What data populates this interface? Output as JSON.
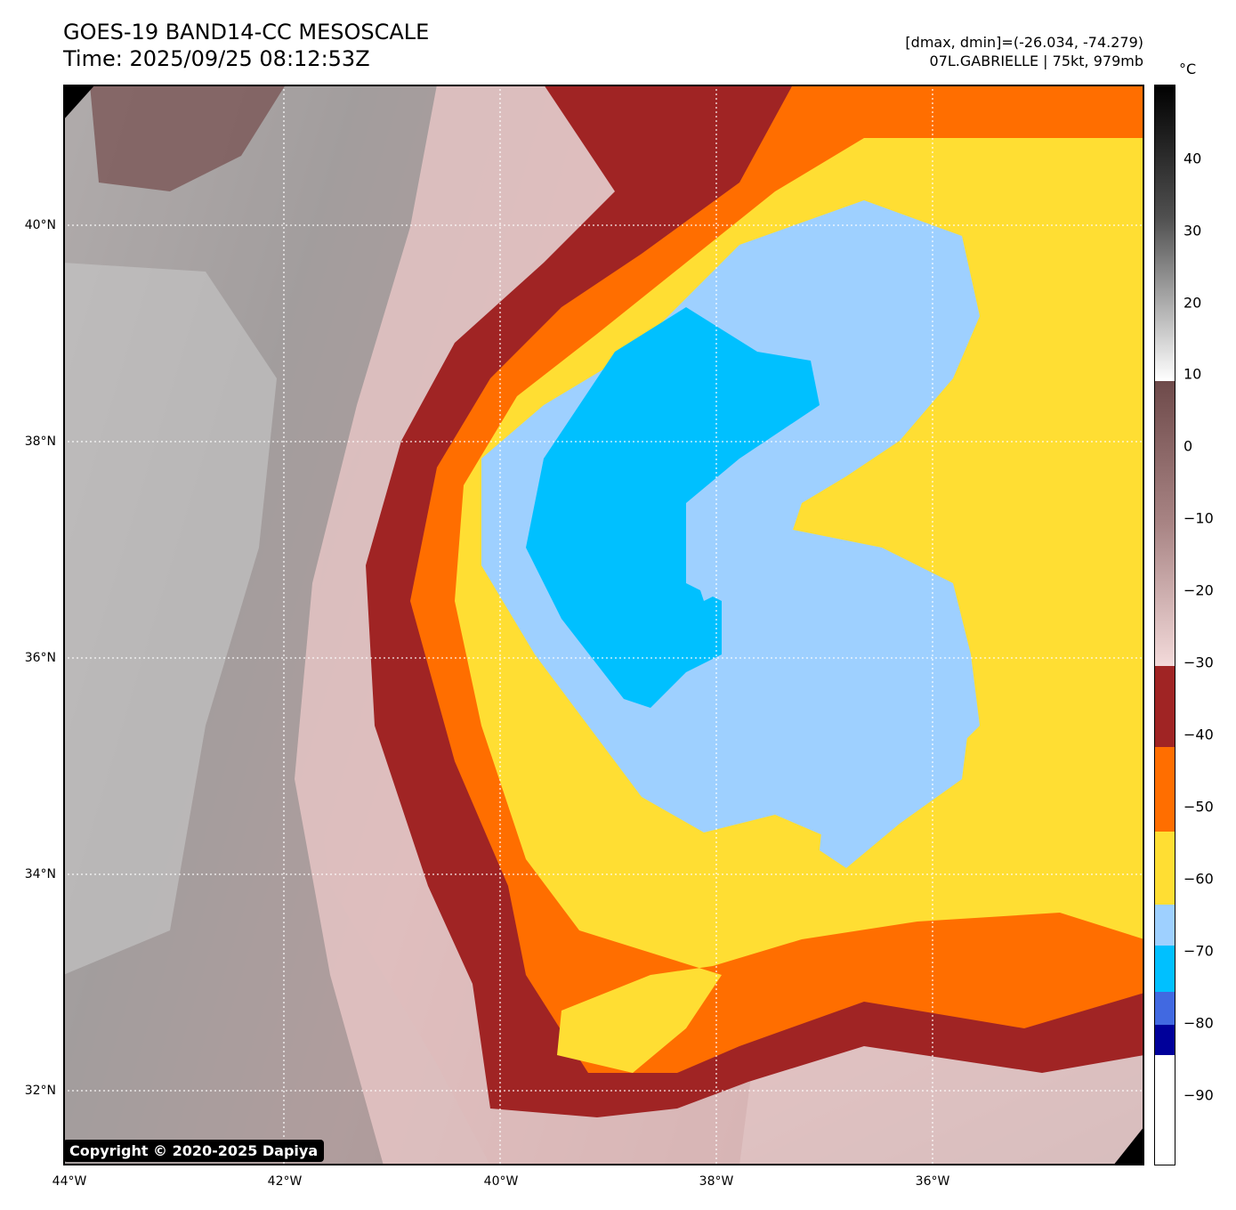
{
  "title": {
    "line1": "GOES-19 BAND14-CC MESOSCALE",
    "line2": "Time: 2025/09/25 08:12:53Z"
  },
  "meta": {
    "line1": "[dmax, dmin]=(-26.034, -74.279)",
    "line2": "07L.GABRIELLE | 75kt, 979mb"
  },
  "axes": {
    "lat_labels": [
      "40°N",
      "38°N",
      "36°N",
      "34°N",
      "32°N"
    ],
    "lon_labels": [
      "44°W",
      "42°W",
      "40°W",
      "38°W",
      "36°W"
    ]
  },
  "colorbar": {
    "unit": "°C",
    "labels": [
      "40",
      "30",
      "20",
      "10",
      "0",
      "−10",
      "−20",
      "−30",
      "−40",
      "−50",
      "−60",
      "−70",
      "−80",
      "−90"
    ],
    "colors": {
      "warm_black": "#000000",
      "warm_gray": "#8c8c8c",
      "white": "#ffffff",
      "dark_brown": "#7a5656",
      "pink": "#f0d4d4",
      "dark_red": "#a02424",
      "orange": "#ff6e00",
      "yellow": "#ffde33",
      "light_blue": "#9ed0ff",
      "sky_blue": "#00c0ff",
      "royal_blue": "#4169e1",
      "navy": "#00009a"
    }
  },
  "copyright": "Copyright © 2020-2025 Dapiya"
}
